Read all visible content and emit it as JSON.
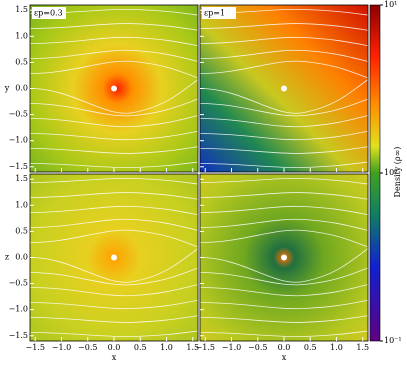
{
  "chart_data": {
    "type": "image",
    "xlabel": "x",
    "ylabels": [
      "y",
      "z"
    ],
    "panel_labels": [
      "εp=0.3",
      "εp=1"
    ],
    "xlim": [
      -1.6,
      1.6
    ],
    "ylim": [
      -1.6,
      1.6
    ],
    "xticks": [
      {
        "value": -1.5,
        "label": "−1.5"
      },
      {
        "value": -1.0,
        "label": "−1.0"
      },
      {
        "value": -0.5,
        "label": "−0.5"
      },
      {
        "value": 0.0,
        "label": "0.0"
      },
      {
        "value": 0.5,
        "label": "0.5"
      },
      {
        "value": 1.0,
        "label": "1.0"
      },
      {
        "value": 1.5,
        "label": "1.5"
      }
    ],
    "yticks": [
      {
        "value": -1.5,
        "label": "−1.5"
      },
      {
        "value": -1.0,
        "label": "−1.0"
      },
      {
        "value": -0.5,
        "label": "−0.5"
      },
      {
        "value": 0.0,
        "label": "0.0"
      },
      {
        "value": 0.5,
        "label": "0.5"
      },
      {
        "value": 1.0,
        "label": "1.0"
      },
      {
        "value": 1.5,
        "label": "1.5"
      }
    ],
    "colorbar": {
      "label": "Density (ρ∞)",
      "log_scale": true,
      "lim": [
        0.1,
        10
      ],
      "ticks": [
        {
          "value": 10,
          "label": "10¹"
        },
        {
          "value": 1,
          "label": "10⁰"
        },
        {
          "value": 0.1,
          "label": "10⁻¹"
        }
      ]
    }
  }
}
